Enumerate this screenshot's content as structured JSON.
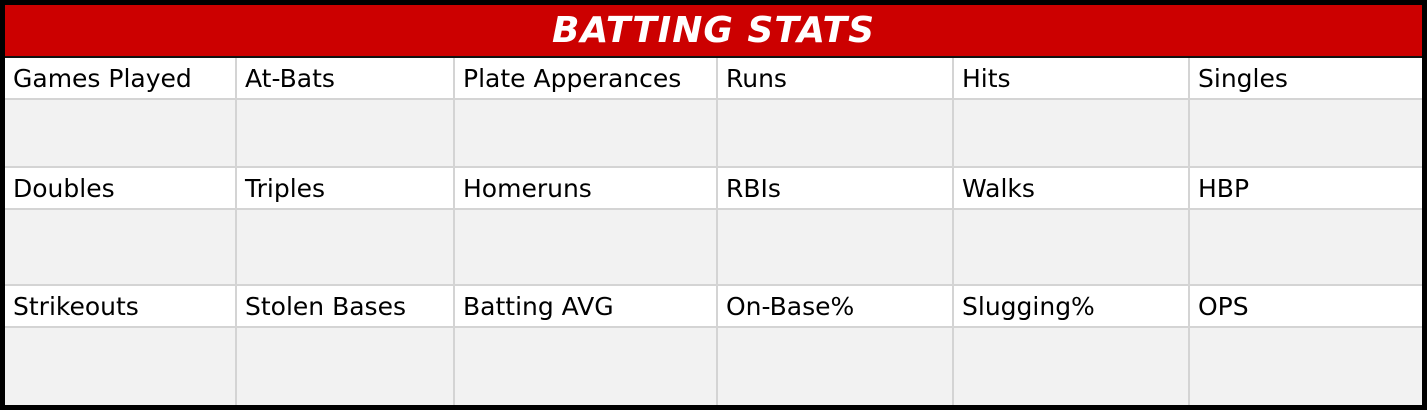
{
  "title": "BATTING STATS",
  "colors": {
    "header_bg": "#cc0000",
    "header_text": "#ffffff",
    "border": "#000000",
    "value_cell_bg": "#f2f2f2",
    "grid_line": "#d4d4d4"
  },
  "rows": [
    {
      "labels": [
        "Games Played",
        "At-Bats",
        "Plate Apperances",
        "Runs",
        "Hits",
        "Singles"
      ],
      "values": [
        "",
        "",
        "",
        "",
        "",
        ""
      ]
    },
    {
      "labels": [
        "Doubles",
        "Triples",
        "Homeruns",
        "RBIs",
        "Walks",
        "HBP"
      ],
      "values": [
        "",
        "",
        "",
        "",
        "",
        ""
      ]
    },
    {
      "labels": [
        "Strikeouts",
        "Stolen Bases",
        "Batting AVG",
        "On-Base%",
        "Slugging%",
        "OPS"
      ],
      "values": [
        "",
        "",
        "",
        "",
        "",
        ""
      ]
    }
  ]
}
